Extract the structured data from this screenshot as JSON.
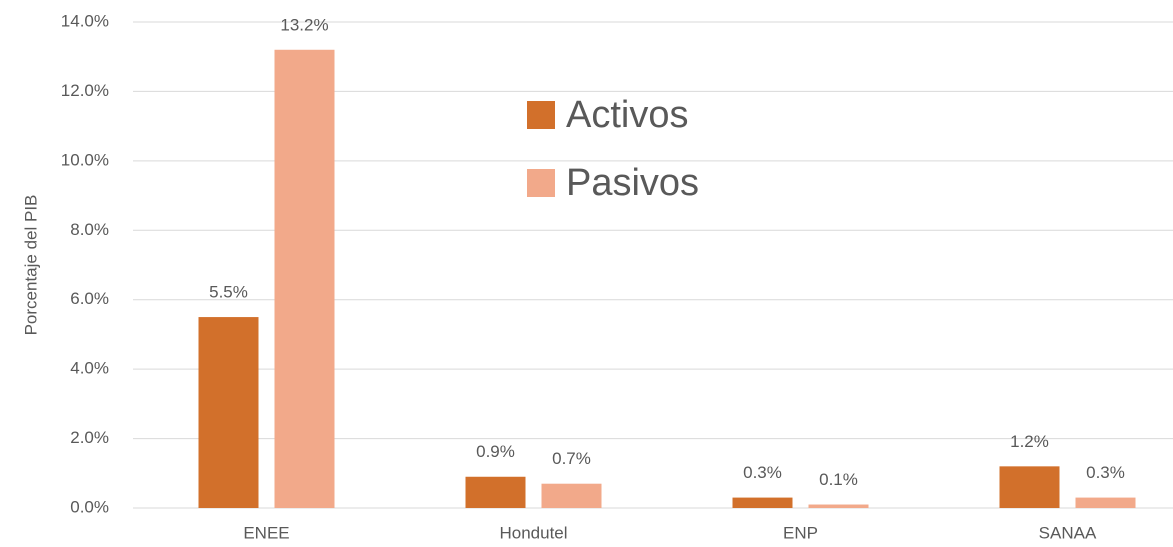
{
  "chart_data": {
    "type": "bar",
    "y_label": "Porcentaje del PIB",
    "categories": [
      "ENEE",
      "Hondutel",
      "ENP",
      "SANAA"
    ],
    "series": [
      {
        "name": "Activos",
        "color": "#d2702b",
        "values": [
          5.5,
          0.9,
          0.3,
          1.2
        ],
        "value_labels": [
          "5.5%",
          "0.9%",
          "0.3%",
          "1.2%"
        ]
      },
      {
        "name": "Pasivos",
        "color": "#f2a98a",
        "values": [
          13.2,
          0.7,
          0.1,
          0.3
        ],
        "value_labels": [
          "13.2%",
          "0.7%",
          "0.1%",
          "0.3%"
        ]
      }
    ],
    "ylim": [
      0,
      14
    ],
    "yticks": [
      {
        "value": 0,
        "label": "0.0%"
      },
      {
        "value": 2,
        "label": "2.0%"
      },
      {
        "value": 4,
        "label": "4.0%"
      },
      {
        "value": 6,
        "label": "6.0%"
      },
      {
        "value": 8,
        "label": "8.0%"
      },
      {
        "value": 10,
        "label": "10.0%"
      },
      {
        "value": 12,
        "label": "12.0%"
      },
      {
        "value": 14,
        "label": "14.0%"
      }
    ],
    "grid": true
  }
}
